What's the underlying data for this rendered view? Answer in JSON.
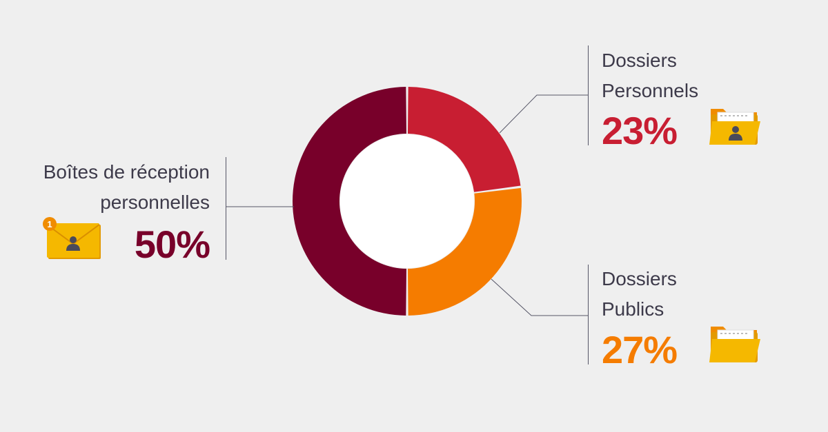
{
  "chart_data": {
    "type": "pie",
    "title": "",
    "slices": [
      {
        "label": "Dossiers Personnels",
        "value": 23,
        "display": "23%",
        "color": "#c81e32"
      },
      {
        "label": "Dossiers Publics",
        "value": 27,
        "display": "27%",
        "color": "#f57c00"
      },
      {
        "label": "Boîtes de réception personnelles",
        "value": 50,
        "display": "50%",
        "color": "#78002a"
      }
    ]
  },
  "labels": {
    "personal_folders": {
      "line1": "Dossiers",
      "line2": "Personnels",
      "pct": "23%"
    },
    "public_folders": {
      "line1": "Dossiers",
      "line2": "Publics",
      "pct": "27%"
    },
    "inboxes": {
      "line1": "Boîtes de réception",
      "line2": "personnelles",
      "pct": "50%"
    }
  },
  "icons": {
    "personal_folders": "folder-user-icon",
    "public_folders": "folder-icon",
    "inboxes": "mail-user-icon",
    "mail_badge_count": "1"
  },
  "colors": {
    "background": "#efefef",
    "text": "#3d3a4a",
    "icon_yellow": "#f5b800",
    "icon_orange": "#f08c00"
  }
}
